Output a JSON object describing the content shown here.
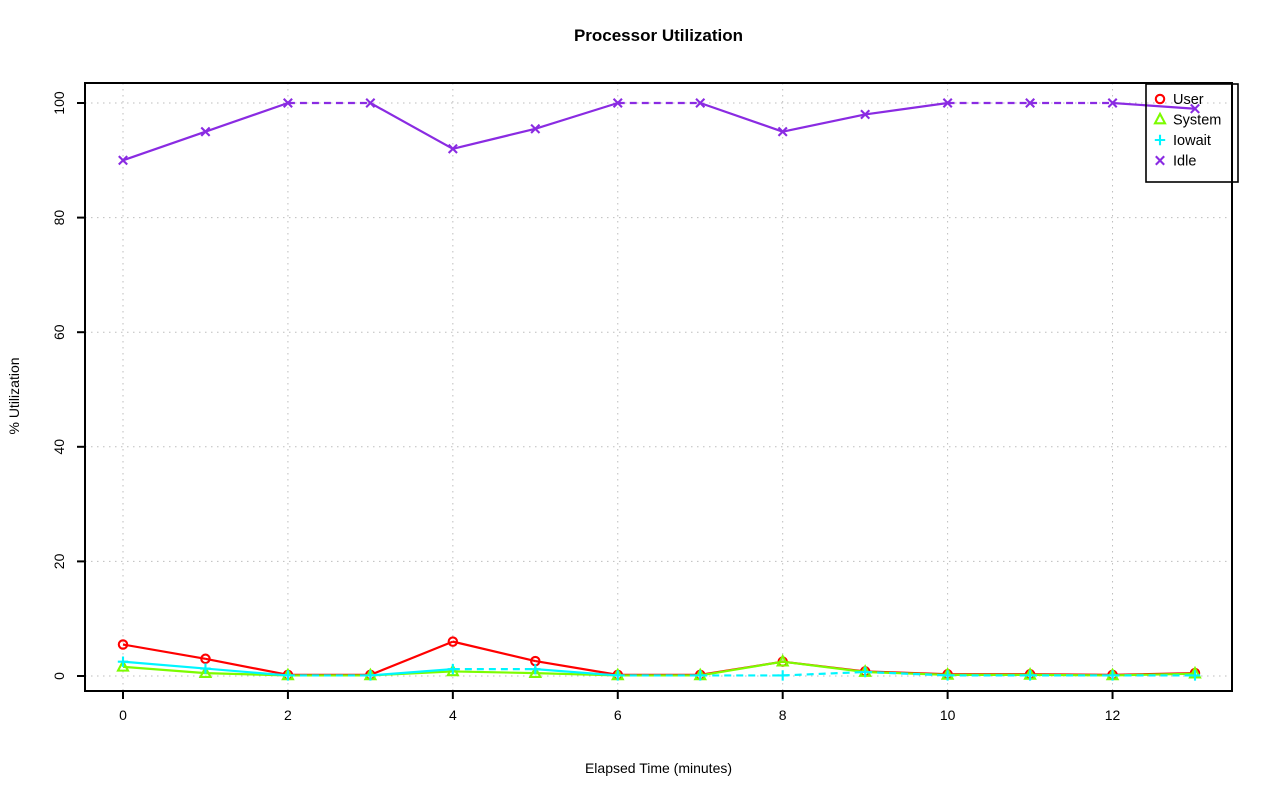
{
  "chart_data": {
    "type": "line",
    "title": "Processor Utilization",
    "xlabel": "Elapsed Time (minutes)",
    "ylabel": "% Utilization",
    "x": [
      0,
      1,
      2,
      3,
      4,
      5,
      6,
      7,
      8,
      9,
      10,
      11,
      12,
      13
    ],
    "series": [
      {
        "name": "User",
        "color": "#ff0000",
        "marker": "circle",
        "dash_on_flat": false,
        "values": [
          5.5,
          3.0,
          0.2,
          0.2,
          6.0,
          2.6,
          0.2,
          0.2,
          2.5,
          0.8,
          0.3,
          0.3,
          0.2,
          0.5
        ]
      },
      {
        "name": "System",
        "color": "#7cfc00",
        "marker": "triangle",
        "dash_on_flat": false,
        "values": [
          1.6,
          0.5,
          0.1,
          0.1,
          0.8,
          0.5,
          0.1,
          0.1,
          2.5,
          0.7,
          0.2,
          0.2,
          0.1,
          0.4
        ]
      },
      {
        "name": "Iowait",
        "color": "#00f5ff",
        "marker": "plus",
        "dash_on_flat": true,
        "values": [
          2.5,
          1.3,
          0.1,
          0.1,
          1.2,
          1.2,
          0.1,
          0.1,
          0.1,
          0.7,
          0.1,
          0.1,
          0.1,
          0.1
        ]
      },
      {
        "name": "Idle",
        "color": "#8a2be2",
        "marker": "x",
        "dash_on_flat": true,
        "values": [
          90,
          95,
          100,
          100,
          92,
          95.5,
          100,
          100,
          95,
          98,
          100,
          100,
          100,
          99
        ]
      }
    ],
    "xticks": [
      0,
      2,
      4,
      6,
      8,
      10,
      12
    ],
    "yticks": [
      0,
      20,
      40,
      60,
      80,
      100
    ],
    "xlim": [
      0,
      13
    ],
    "ylim": [
      0,
      100
    ],
    "grid": true,
    "grid_color": "#bdbdbd",
    "frame_color": "#000000",
    "legend_position": "top-right",
    "legend_labels": [
      "User",
      "System",
      "Iowait",
      "Idle"
    ]
  }
}
